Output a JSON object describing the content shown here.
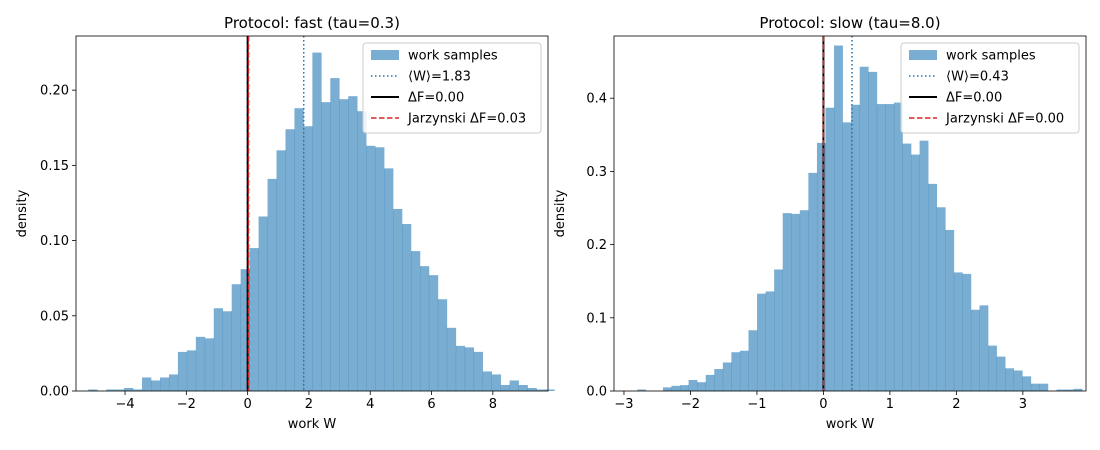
{
  "chart_data": [
    {
      "type": "histogram",
      "title": "Protocol: fast (tau=0.3)",
      "xlabel": "work W",
      "ylabel": "density",
      "xlim": [
        -5.6,
        9.8
      ],
      "ylim": [
        0,
        0.236
      ],
      "xticks": [
        -4,
        -2,
        0,
        2,
        4,
        6,
        8
      ],
      "xtick_labels": [
        "−4",
        "−2",
        "0",
        "2",
        "4",
        "6",
        "8"
      ],
      "yticks": [
        0,
        0.05,
        0.1,
        0.15,
        0.2
      ],
      "ytick_labels": [
        "0.00",
        "0.05",
        "0.10",
        "0.15",
        "0.20"
      ],
      "grid": false,
      "legend_placement": "top-right",
      "bin_edges_start": -5.2,
      "bin_width": 0.2925,
      "densities": [
        0.001,
        0.0,
        0.001,
        0.001,
        0.002,
        0.001,
        0.009,
        0.007,
        0.009,
        0.011,
        0.026,
        0.027,
        0.036,
        0.035,
        0.055,
        0.053,
        0.071,
        0.081,
        0.095,
        0.116,
        0.141,
        0.16,
        0.174,
        0.188,
        0.176,
        0.225,
        0.192,
        0.208,
        0.194,
        0.196,
        0.186,
        0.163,
        0.162,
        0.148,
        0.121,
        0.111,
        0.093,
        0.083,
        0.077,
        0.061,
        0.042,
        0.03,
        0.029,
        0.026,
        0.013,
        0.011,
        0.004,
        0.007,
        0.004,
        0.002,
        0.001,
        0.001
      ],
      "bar_color": "#1f77b4",
      "bar_alpha": 0.6,
      "mean_W": 1.83,
      "delta_F": 0.0,
      "jarzynski_delta_F": 0.03,
      "legend": [
        {
          "label": "work samples",
          "style": "patch",
          "color": "#1f77b4"
        },
        {
          "label": "⟨W⟩=1.83",
          "style": "dotted",
          "color": "#1f77b4"
        },
        {
          "label": "ΔF=0.00",
          "style": "solid",
          "color": "#000000"
        },
        {
          "label": "Jarzynski ΔF=0.03",
          "style": "dashed",
          "color": "#d62728"
        }
      ]
    },
    {
      "type": "histogram",
      "title": "Protocol: slow (tau=8.0)",
      "xlabel": "work W",
      "ylabel": "density",
      "xlim": [
        -3.15,
        3.95
      ],
      "ylim": [
        0,
        0.485
      ],
      "xticks": [
        -3,
        -2,
        -1,
        0,
        1,
        2,
        3
      ],
      "xtick_labels": [
        "−3",
        "−2",
        "−1",
        "0",
        "1",
        "2",
        "3"
      ],
      "yticks": [
        0,
        0.1,
        0.2,
        0.3,
        0.4
      ],
      "ytick_labels": [
        "0.0",
        "0.1",
        "0.2",
        "0.3",
        "0.4"
      ],
      "grid": false,
      "legend_placement": "top-right",
      "bin_edges_start": -2.8,
      "bin_width": 0.1287,
      "densities": [
        0.002,
        0.0,
        0.0,
        0.005,
        0.007,
        0.008,
        0.015,
        0.012,
        0.022,
        0.03,
        0.039,
        0.053,
        0.055,
        0.083,
        0.133,
        0.136,
        0.166,
        0.243,
        0.242,
        0.247,
        0.298,
        0.339,
        0.387,
        0.472,
        0.367,
        0.391,
        0.443,
        0.436,
        0.392,
        0.392,
        0.394,
        0.338,
        0.323,
        0.342,
        0.283,
        0.251,
        0.22,
        0.162,
        0.16,
        0.111,
        0.117,
        0.062,
        0.047,
        0.031,
        0.028,
        0.02,
        0.01,
        0.01,
        0.0,
        0.002,
        0.002,
        0.003
      ],
      "bar_color": "#1f77b4",
      "bar_alpha": 0.6,
      "mean_W": 0.43,
      "delta_F": 0.0,
      "jarzynski_delta_F": 0.0,
      "legend": [
        {
          "label": "work samples",
          "style": "patch",
          "color": "#1f77b4"
        },
        {
          "label": "⟨W⟩=0.43",
          "style": "dotted",
          "color": "#1f77b4"
        },
        {
          "label": "ΔF=0.00",
          "style": "solid",
          "color": "#000000"
        },
        {
          "label": "Jarzynski ΔF=0.00",
          "style": "dashed",
          "color": "#d62728"
        }
      ]
    }
  ]
}
